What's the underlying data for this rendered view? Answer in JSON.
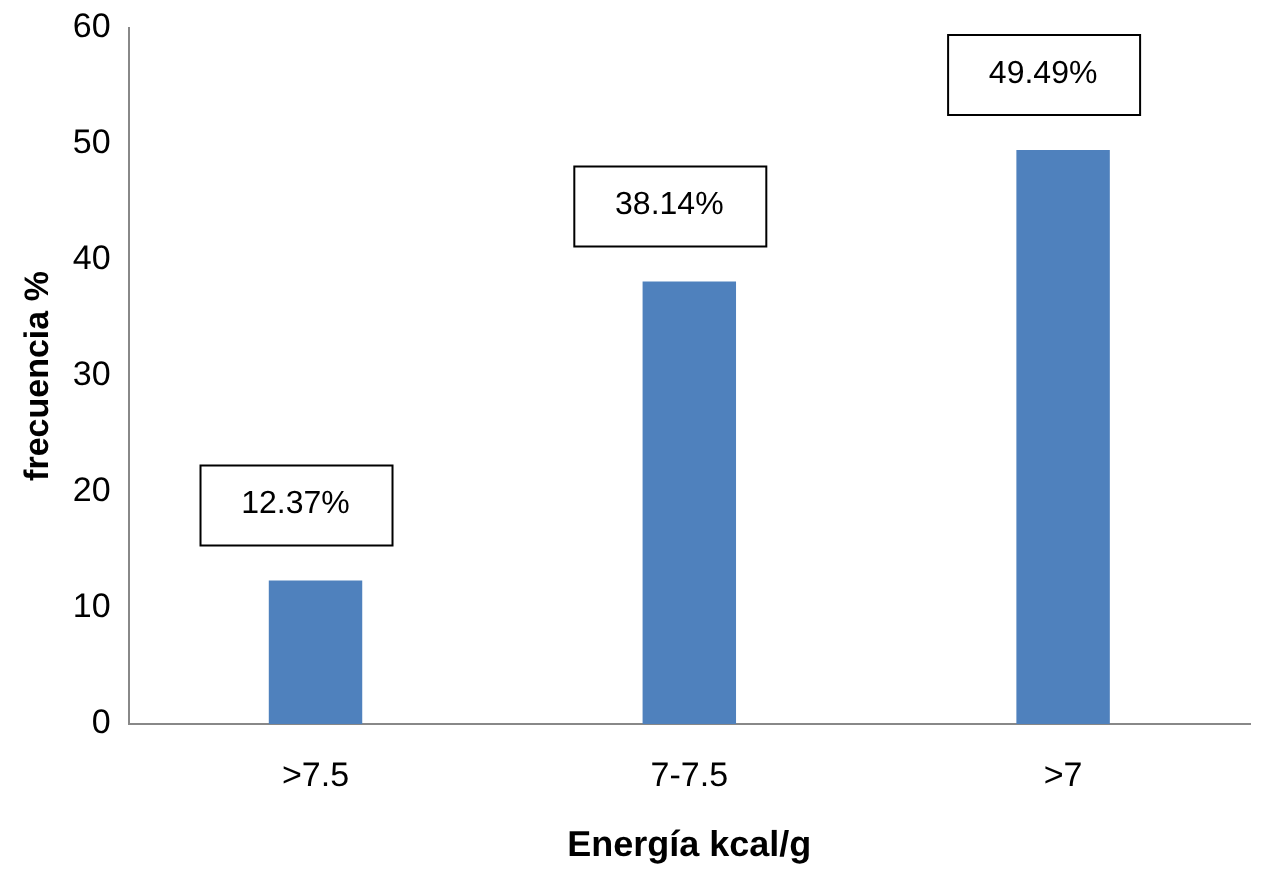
{
  "chart_data": {
    "type": "bar",
    "xlabel": "Energía kcal/g",
    "ylabel": "frecuencia %",
    "categories": [
      ">7.5",
      "7-7.5",
      ">7"
    ],
    "values": [
      12.37,
      38.14,
      49.49
    ],
    "value_labels": [
      "12.37%",
      "38.14%",
      "49.49%"
    ],
    "color": "#4f81bd",
    "ylim": [
      0,
      60
    ],
    "yticks": [
      0,
      10,
      20,
      30,
      40,
      50,
      60
    ],
    "grid": false,
    "legend": false
  }
}
